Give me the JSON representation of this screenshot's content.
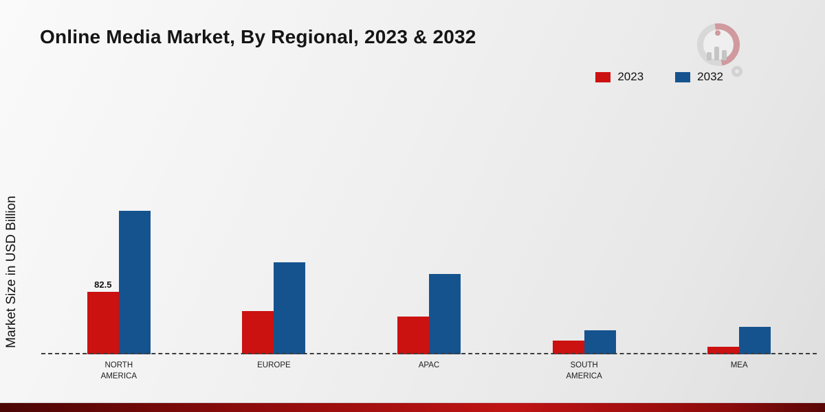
{
  "title": "Online Media Market, By Regional, 2023 & 2032",
  "y_axis_label": "Market Size in USD Billion",
  "chart_data": {
    "type": "bar",
    "title": "Online Media Market, By Regional, 2023 & 2032",
    "xlabel": "",
    "ylabel": "Market Size in USD Billion",
    "ylim": [
      0,
      200
    ],
    "grid": false,
    "baseline_style": "dashed",
    "legend_position": "top-right",
    "categories": [
      "NORTH AMERICA",
      "EUROPE",
      "APAC",
      "SOUTH AMERICA",
      "MEA"
    ],
    "series": [
      {
        "name": "2023",
        "color": "#cc1111",
        "values": [
          82.5,
          57,
          50,
          18,
          10
        ],
        "labels": [
          "82.5",
          "",
          "",
          "",
          ""
        ]
      },
      {
        "name": "2032",
        "color": "#15538f",
        "values": [
          190,
          122,
          106,
          32,
          36
        ],
        "labels": [
          "",
          "",
          "",
          "",
          ""
        ]
      }
    ]
  },
  "footer": {
    "band_color": "#c01414"
  }
}
